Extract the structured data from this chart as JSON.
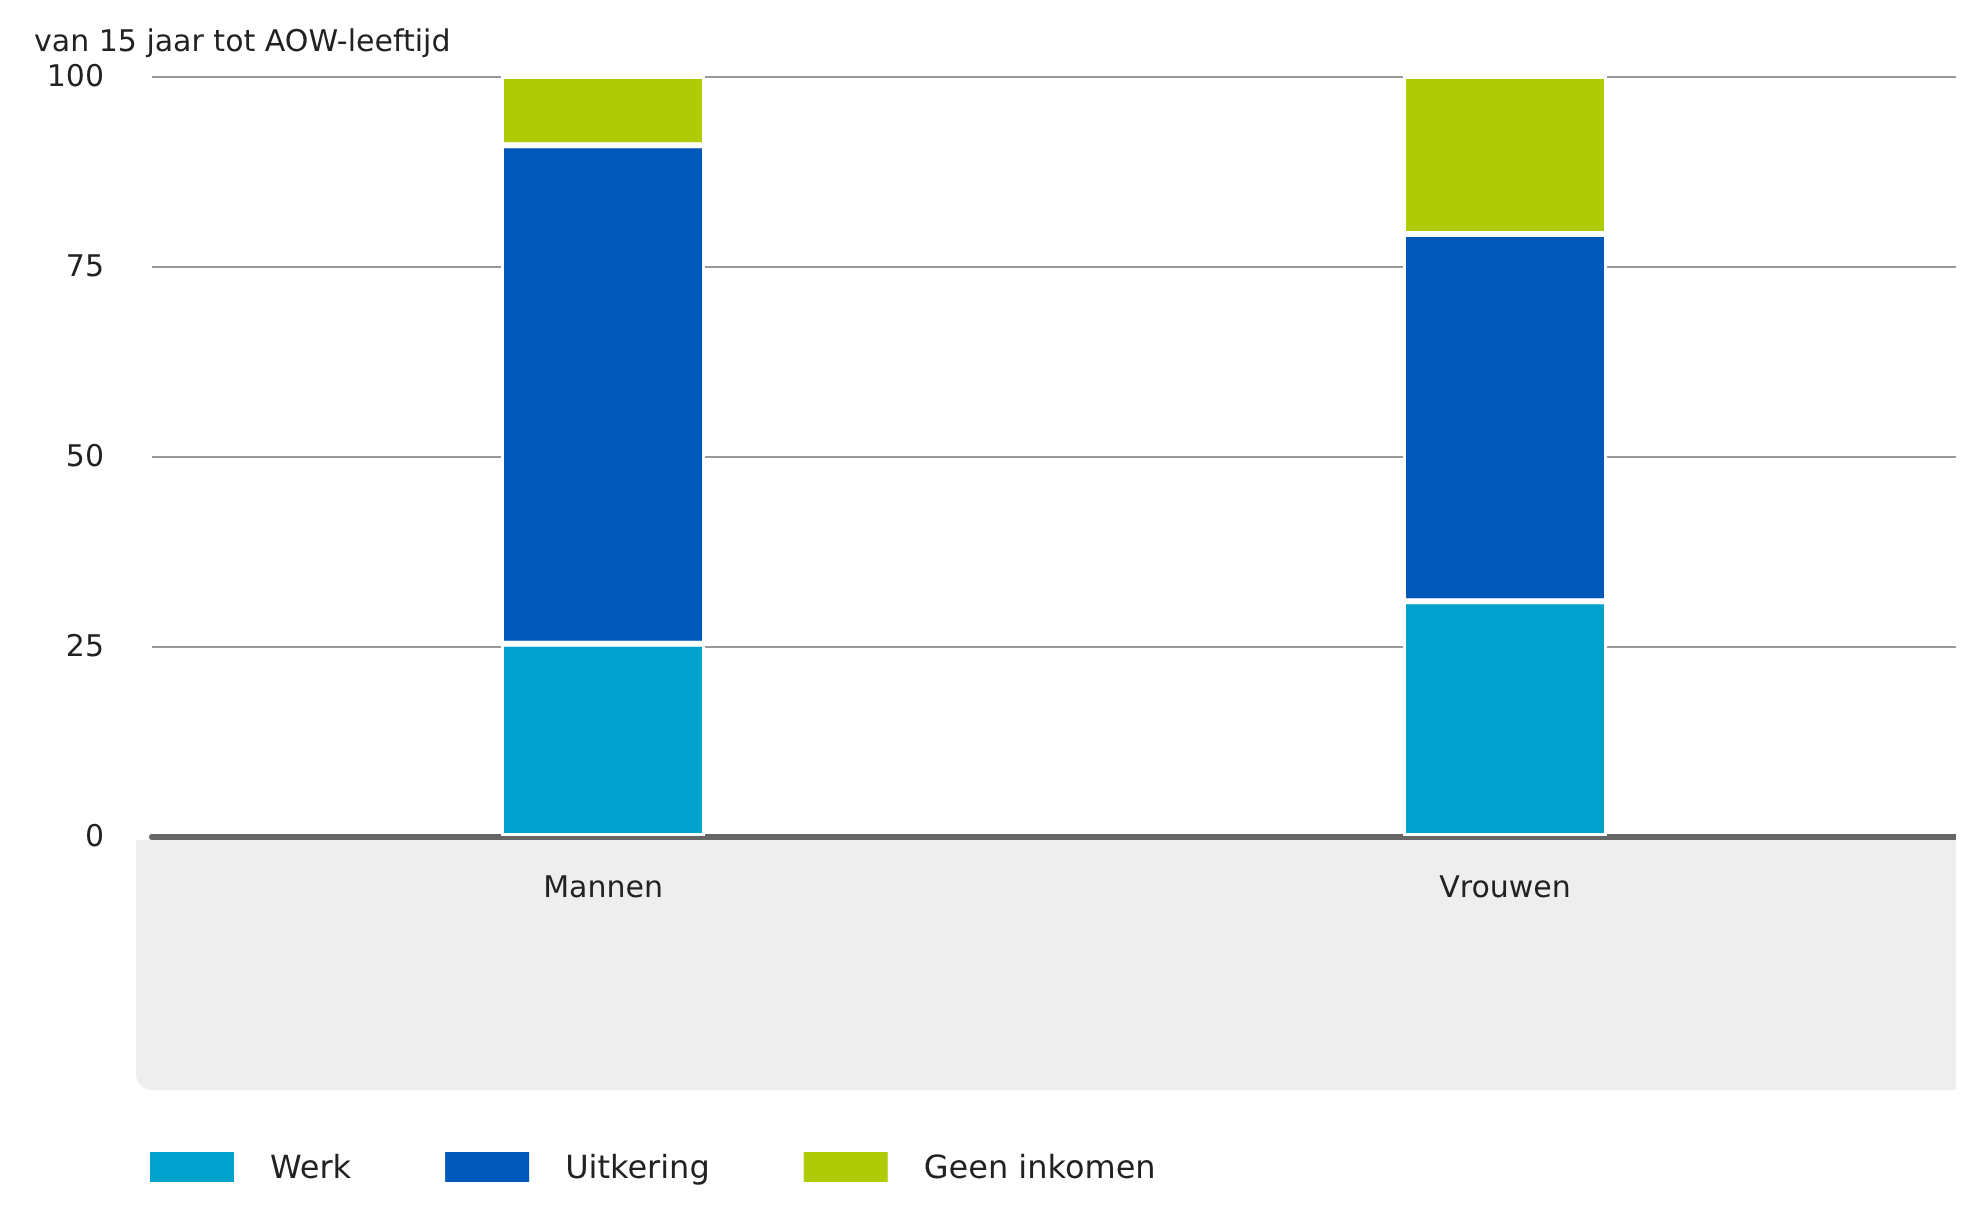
{
  "chart_data": {
    "type": "bar",
    "ylabel": "van 15 jaar tot AOW-leeftijd",
    "categories": [
      "Mannen",
      "Vrouwen"
    ],
    "stacked": true,
    "series": [
      {
        "name": "Werk",
        "color": "#00a1cd",
        "values": [
          25.3,
          30.9
        ]
      },
      {
        "name": "Uitkering",
        "color": "#0058b8",
        "values": [
          65.6,
          48.3
        ]
      },
      {
        "name": "Geen inkomen",
        "color": "#afcb05",
        "values": [
          9.1,
          20.8
        ]
      }
    ],
    "ylim": [
      0,
      100
    ],
    "yticks": [
      0,
      25,
      50,
      75,
      100
    ],
    "grid": "y",
    "legend": "bottom left"
  }
}
